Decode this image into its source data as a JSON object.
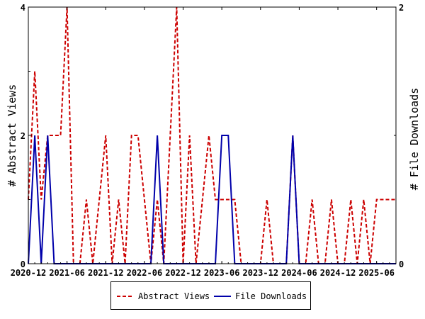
{
  "chart_data": {
    "type": "line",
    "xlabel": "",
    "y_left_label": "# Abstract Views",
    "y_right_label": "# File Downloads",
    "y_left_lim": [
      0,
      4
    ],
    "y_right_lim": [
      0,
      2
    ],
    "y_left_ticks": [
      "0",
      "2",
      "4"
    ],
    "y_right_ticks": [
      "0",
      "2"
    ],
    "x_ticks": [
      "2020-12",
      "2021-06",
      "2021-12",
      "2022-06",
      "2022-12",
      "2023-06",
      "2023-12",
      "2024-06",
      "2024-12",
      "2025-06"
    ],
    "months": [
      "2020-12",
      "2021-01",
      "2021-02",
      "2021-03",
      "2021-04",
      "2021-05",
      "2021-06",
      "2021-07",
      "2021-08",
      "2021-09",
      "2021-10",
      "2021-11",
      "2021-12",
      "2022-01",
      "2022-02",
      "2022-03",
      "2022-04",
      "2022-05",
      "2022-06",
      "2022-07",
      "2022-08",
      "2022-09",
      "2022-10",
      "2022-11",
      "2022-12",
      "2023-01",
      "2023-02",
      "2023-03",
      "2023-04",
      "2023-05",
      "2023-06",
      "2023-07",
      "2023-08",
      "2023-09",
      "2023-10",
      "2023-11",
      "2023-12",
      "2024-01",
      "2024-02",
      "2024-03",
      "2024-04",
      "2024-05",
      "2024-06",
      "2024-07",
      "2024-08",
      "2024-09",
      "2024-10",
      "2024-11",
      "2024-12",
      "2025-01",
      "2025-02",
      "2025-03",
      "2025-04",
      "2025-05",
      "2025-06",
      "2025-07",
      "2025-08",
      "2025-09"
    ],
    "series": [
      {
        "name": "Abstract Views",
        "axis": "left",
        "color": "#cc0000",
        "dash": "dashed",
        "values": [
          1,
          3,
          1,
          2,
          2,
          2,
          4,
          0,
          0,
          1,
          0,
          1,
          2,
          0,
          1,
          0,
          2,
          2,
          1,
          0,
          1,
          0,
          2,
          4,
          0,
          2,
          0,
          1,
          2,
          1,
          1,
          1,
          1,
          0,
          0,
          0,
          0,
          1,
          0,
          0,
          0,
          2,
          0,
          0,
          1,
          0,
          0,
          1,
          0,
          0,
          1,
          0,
          1,
          0,
          1,
          1,
          1,
          1
        ]
      },
      {
        "name": "File Downloads",
        "axis": "right",
        "color": "#0000aa",
        "dash": "solid",
        "values": [
          0,
          1,
          0,
          1,
          0,
          0,
          0,
          0,
          0,
          0,
          0,
          0,
          0,
          0,
          0,
          0,
          0,
          0,
          0,
          0,
          1,
          0,
          0,
          0,
          0,
          0,
          0,
          0,
          0,
          0,
          1,
          1,
          0,
          0,
          0,
          0,
          0,
          0,
          0,
          0,
          0,
          1,
          0,
          0,
          0,
          0,
          0,
          0,
          0,
          0,
          0,
          0,
          0,
          0,
          0,
          0,
          0,
          0
        ]
      }
    ],
    "legend_position": "bottom",
    "grid": false
  }
}
